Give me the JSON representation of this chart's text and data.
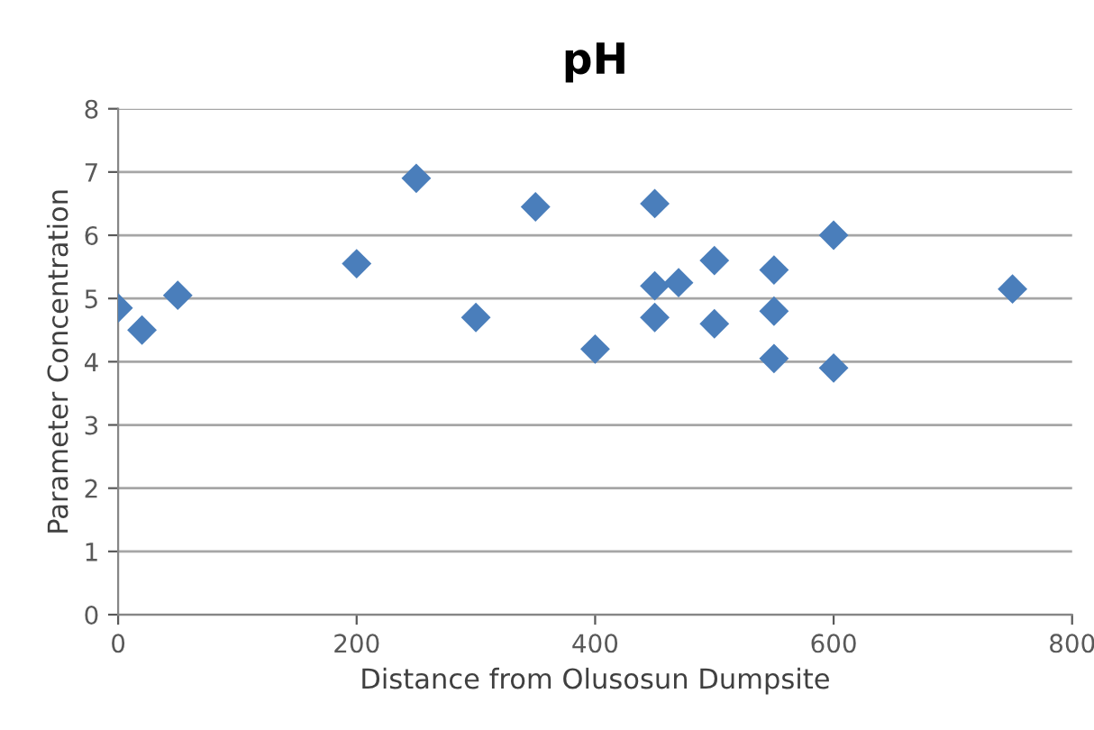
{
  "chart_data": {
    "type": "scatter",
    "title": "pH",
    "xlabel": "Distance from Olusosun Dumpsite",
    "ylabel": "Parameter Concentration",
    "x": [
      0,
      20,
      50,
      200,
      250,
      300,
      350,
      400,
      450,
      450,
      470,
      450,
      500,
      500,
      550,
      550,
      550,
      600,
      600,
      750
    ],
    "values": [
      4.85,
      4.5,
      5.05,
      5.55,
      6.9,
      4.7,
      6.45,
      4.2,
      6.5,
      5.2,
      5.25,
      4.7,
      5.6,
      4.6,
      5.45,
      4.8,
      4.05,
      6.0,
      3.9,
      5.15
    ],
    "color": "#4a7ebb",
    "marker": "diamond",
    "xlim": [
      0,
      800
    ],
    "xticks": [
      0,
      200,
      400,
      600,
      800
    ],
    "ylim": [
      0,
      8
    ],
    "yticks": [
      0,
      1,
      2,
      3,
      4,
      5,
      6,
      7,
      8
    ],
    "grid": "y",
    "legend": false
  }
}
